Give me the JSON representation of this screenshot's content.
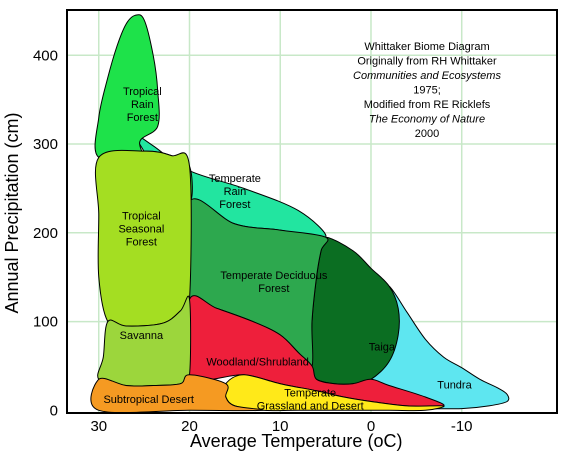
{
  "chart_data": {
    "type": "area",
    "xlabel": "Average Temperature (",
    "xlabel_unit": "oC)",
    "ylabel": "Annual Precipitation (cm)",
    "x_reversed": true,
    "xlim": [
      -20.5,
      33.5
    ],
    "ylim": [
      -3,
      451
    ],
    "xticks": [
      "30",
      "20",
      "10",
      "0",
      "-10"
    ],
    "yticks": [
      "0",
      "100",
      "200",
      "300",
      "400"
    ],
    "grid": true,
    "note": [
      {
        "text": "Whittaker Biome Diagram",
        "italic": false
      },
      {
        "text": "Originally from RH Whittaker",
        "italic": false
      },
      {
        "text": "Communities and Ecosystems",
        "italic": true
      },
      {
        "text": "1975;",
        "italic": false
      },
      {
        "text": "Modified from RE Ricklefs",
        "italic": false
      },
      {
        "text": "The Economy of Nature",
        "italic": true
      },
      {
        "text": "2000",
        "italic": false
      }
    ],
    "biomes": [
      {
        "name": "Tundra",
        "color": "#5ee6f0",
        "label": [
          "Tundra"
        ],
        "label_at": [
          -9.2,
          29
        ],
        "boundary": [
          [
            -2,
            140
          ],
          [
            -4,
            110
          ],
          [
            -6,
            80
          ],
          [
            -8,
            60
          ],
          [
            -10,
            48
          ],
          [
            -12,
            35
          ],
          [
            -14,
            25
          ],
          [
            -15,
            18
          ],
          [
            -15,
            10
          ],
          [
            -13,
            5
          ],
          [
            -10,
            2
          ],
          [
            -5,
            2
          ],
          [
            2,
            2
          ],
          [
            5,
            10
          ],
          [
            3,
            40
          ],
          [
            1,
            90
          ],
          [
            0,
            120
          ],
          [
            -1,
            135
          ]
        ]
      },
      {
        "name": "Taiga",
        "color": "#0b6e22",
        "label": [
          "Taiga"
        ],
        "label_at": [
          -1.2,
          72
        ],
        "boundary": [
          [
            5,
            195
          ],
          [
            2,
            180
          ],
          [
            0,
            160
          ],
          [
            -2,
            140
          ],
          [
            -3,
            115
          ],
          [
            -3,
            85
          ],
          [
            -2,
            55
          ],
          [
            0,
            35
          ],
          [
            2,
            30
          ],
          [
            4,
            30
          ],
          [
            6,
            35
          ],
          [
            6.5,
            50
          ],
          [
            6.5,
            100
          ],
          [
            6,
            150
          ],
          [
            5.5,
            180
          ]
        ]
      },
      {
        "name": "Temperate Rain Forest",
        "color": "#22e5a0",
        "label": [
          "Temperate",
          "Rain",
          "Forest"
        ],
        "label_at": [
          15,
          247
        ],
        "boundary": [
          [
            26.5,
            315
          ],
          [
            24,
            298
          ],
          [
            20,
            270
          ],
          [
            14,
            250
          ],
          [
            8,
            225
          ],
          [
            5,
            195
          ],
          [
            10,
            203
          ],
          [
            15,
            210
          ],
          [
            20,
            235
          ],
          [
            23,
            260
          ],
          [
            25.5,
            300
          ]
        ]
      },
      {
        "name": "Temperate Deciduous Forest",
        "color": "#2da84e",
        "label": [
          "Temperate Deciduous",
          "Forest"
        ],
        "label_at": [
          10.7,
          145
        ],
        "boundary": [
          [
            20,
            235
          ],
          [
            15,
            210
          ],
          [
            10,
            203
          ],
          [
            5,
            195
          ],
          [
            5.5,
            180
          ],
          [
            6,
            150
          ],
          [
            6.5,
            100
          ],
          [
            6.5,
            50
          ],
          [
            8,
            65
          ],
          [
            10,
            85
          ],
          [
            13,
            100
          ],
          [
            17,
            115
          ],
          [
            20,
            125
          ]
        ]
      },
      {
        "name": "Woodland/Shrubland",
        "color": "#ee1f3b",
        "label": [
          "Woodland/Shrubland"
        ],
        "label_at": [
          12.5,
          55
        ],
        "boundary": [
          [
            20,
            125
          ],
          [
            17,
            115
          ],
          [
            13,
            100
          ],
          [
            10,
            85
          ],
          [
            8,
            65
          ],
          [
            6.5,
            50
          ],
          [
            6,
            35
          ],
          [
            4,
            30
          ],
          [
            2,
            30
          ],
          [
            0,
            35
          ],
          [
            -2,
            28
          ],
          [
            -6,
            15
          ],
          [
            -8,
            5
          ],
          [
            -4,
            5
          ],
          [
            0,
            10
          ],
          [
            3,
            15
          ],
          [
            6,
            22
          ],
          [
            10,
            30
          ],
          [
            14,
            40
          ],
          [
            20,
            40
          ]
        ]
      },
      {
        "name": "Temperate Grassland and Desert",
        "color": "#ffe919",
        "label": [
          "Temperate",
          "Grassland and Desert"
        ],
        "label_at": [
          6.7,
          13
        ],
        "boundary": [
          [
            14,
            40
          ],
          [
            10,
            30
          ],
          [
            6,
            22
          ],
          [
            3,
            15
          ],
          [
            0,
            10
          ],
          [
            -4,
            5
          ],
          [
            -8,
            5
          ],
          [
            -6,
            0
          ],
          [
            -2,
            0
          ],
          [
            2,
            0
          ],
          [
            8,
            0
          ],
          [
            12,
            0
          ],
          [
            15,
            5
          ],
          [
            16,
            15
          ],
          [
            16,
            30
          ]
        ]
      },
      {
        "name": "Tropical Rain Forest",
        "color": "#1ee24a",
        "label": [
          "Tropical",
          "Rain",
          "Forest"
        ],
        "label_at": [
          25.2,
          345
        ],
        "boundary": [
          [
            30,
            285
          ],
          [
            30,
            330
          ],
          [
            29,
            375
          ],
          [
            28,
            410
          ],
          [
            27,
            435
          ],
          [
            26,
            445
          ],
          [
            25,
            440
          ],
          [
            24,
            400
          ],
          [
            23.5,
            360
          ],
          [
            23.5,
            320
          ],
          [
            25.5,
            300
          ],
          [
            23,
            260
          ],
          [
            20,
            235
          ],
          [
            20,
            275
          ],
          [
            22,
            287
          ],
          [
            25,
            292
          ]
        ]
      },
      {
        "name": "Tropical Seasonal Forest",
        "color": "#a4de22",
        "label": [
          "Tropical",
          "Seasonal",
          "Forest"
        ],
        "label_at": [
          25.3,
          205
        ],
        "boundary": [
          [
            30,
            285
          ],
          [
            25,
            292
          ],
          [
            22,
            287
          ],
          [
            20,
            275
          ],
          [
            20,
            125
          ],
          [
            21,
            112
          ],
          [
            23,
            98
          ],
          [
            27,
            95
          ],
          [
            29,
            100
          ],
          [
            30,
            150
          ],
          [
            30,
            220
          ]
        ]
      },
      {
        "name": "Savanna",
        "color": "#9cd63c",
        "label": [
          "Savanna"
        ],
        "label_at": [
          25.3,
          85
        ],
        "boundary": [
          [
            29,
            100
          ],
          [
            27,
            95
          ],
          [
            23,
            98
          ],
          [
            21,
            112
          ],
          [
            20,
            125
          ],
          [
            20,
            40
          ],
          [
            21,
            30
          ],
          [
            24,
            28
          ],
          [
            27,
            28
          ],
          [
            30,
            35
          ],
          [
            29.5,
            60
          ]
        ]
      },
      {
        "name": "Subtropical Desert",
        "color": "#f59a22",
        "label": [
          "Subtropical Desert"
        ],
        "label_at": [
          24.5,
          13
        ],
        "boundary": [
          [
            30,
            35
          ],
          [
            27,
            28
          ],
          [
            24,
            28
          ],
          [
            21,
            30
          ],
          [
            20,
            40
          ],
          [
            16,
            30
          ],
          [
            16,
            15
          ],
          [
            15,
            5
          ],
          [
            12,
            0
          ],
          [
            20,
            0
          ],
          [
            30,
            0
          ]
        ]
      }
    ]
  }
}
